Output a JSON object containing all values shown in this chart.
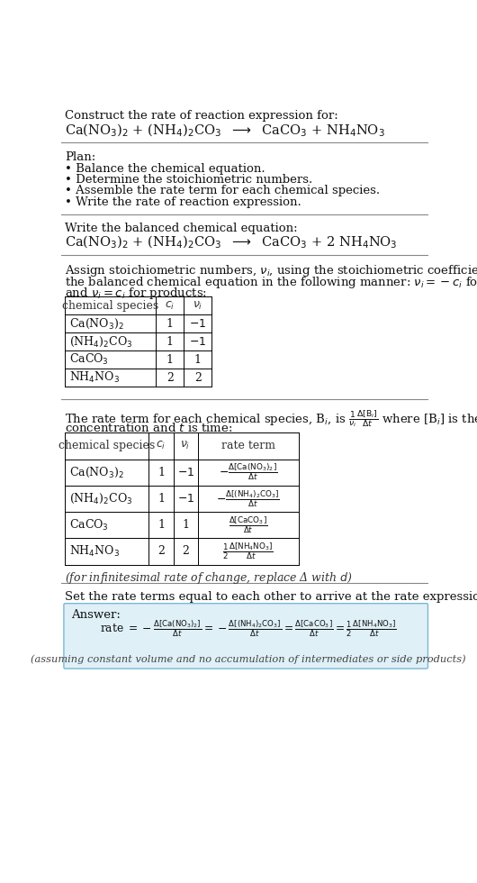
{
  "bg_color": "#ffffff",
  "text_color": "#111111",
  "title_text": "Construct the rate of reaction expression for:",
  "plan_header": "Plan:",
  "plan_items": [
    "• Balance the chemical equation.",
    "• Determine the stoichiometric numbers.",
    "• Assemble the rate term for each chemical species.",
    "• Write the rate of reaction expression."
  ],
  "balanced_header": "Write the balanced chemical equation:",
  "stoich_line1": "Assign stoichiometric numbers, $\\nu_i$, using the stoichiometric coefficients, $c_i$, from",
  "stoich_line2": "the balanced chemical equation in the following manner: $\\nu_i = -c_i$ for reactants",
  "stoich_line3": "and $\\nu_i = c_i$ for products:",
  "table1_headers": [
    "chemical species",
    "$c_i$",
    "$\\nu_i$"
  ],
  "table1_rows": [
    [
      "Ca(NO$_3$)$_2$",
      "1",
      "$-1$"
    ],
    [
      "(NH$_4$)$_2$CO$_3$",
      "1",
      "$-1$"
    ],
    [
      "CaCO$_3$",
      "1",
      "1"
    ],
    [
      "NH$_4$NO$_3$",
      "2",
      "2"
    ]
  ],
  "rate_line1": "The rate term for each chemical species, B$_i$, is $\\frac{1}{\\nu_i}\\frac{\\Delta[\\mathrm{B}_i]}{\\Delta t}$ where [B$_i$] is the amount",
  "rate_line2": "concentration and $t$ is time:",
  "table2_headers": [
    "chemical species",
    "$c_i$",
    "$\\nu_i$",
    "rate term"
  ],
  "table2_rows": [
    [
      "Ca(NO$_3$)$_2$",
      "1",
      "$-1$",
      "$-\\frac{\\Delta[\\mathrm{Ca(NO_3)_2}]}{\\Delta t}$"
    ],
    [
      "(NH$_4$)$_2$CO$_3$",
      "1",
      "$-1$",
      "$-\\frac{\\Delta[\\mathrm{(NH_4)_2CO_3}]}{\\Delta t}$"
    ],
    [
      "CaCO$_3$",
      "1",
      "1",
      "$\\frac{\\Delta[\\mathrm{CaCO_3}]}{\\Delta t}$"
    ],
    [
      "NH$_4$NO$_3$",
      "2",
      "2",
      "$\\frac{1}{2}\\frac{\\Delta[\\mathrm{NH_4NO_3}]}{\\Delta t}$"
    ]
  ],
  "infinitesimal_note": "(for infinitesimal rate of change, replace Δ with $d$)",
  "set_equal_text": "Set the rate terms equal to each other to arrive at the rate expression:",
  "answer_box_color": "#dff0f7",
  "answer_box_border": "#7ab8d4",
  "answer_label": "Answer:",
  "answer_note": "(assuming constant volume and no accumulation of intermediates or side products)"
}
